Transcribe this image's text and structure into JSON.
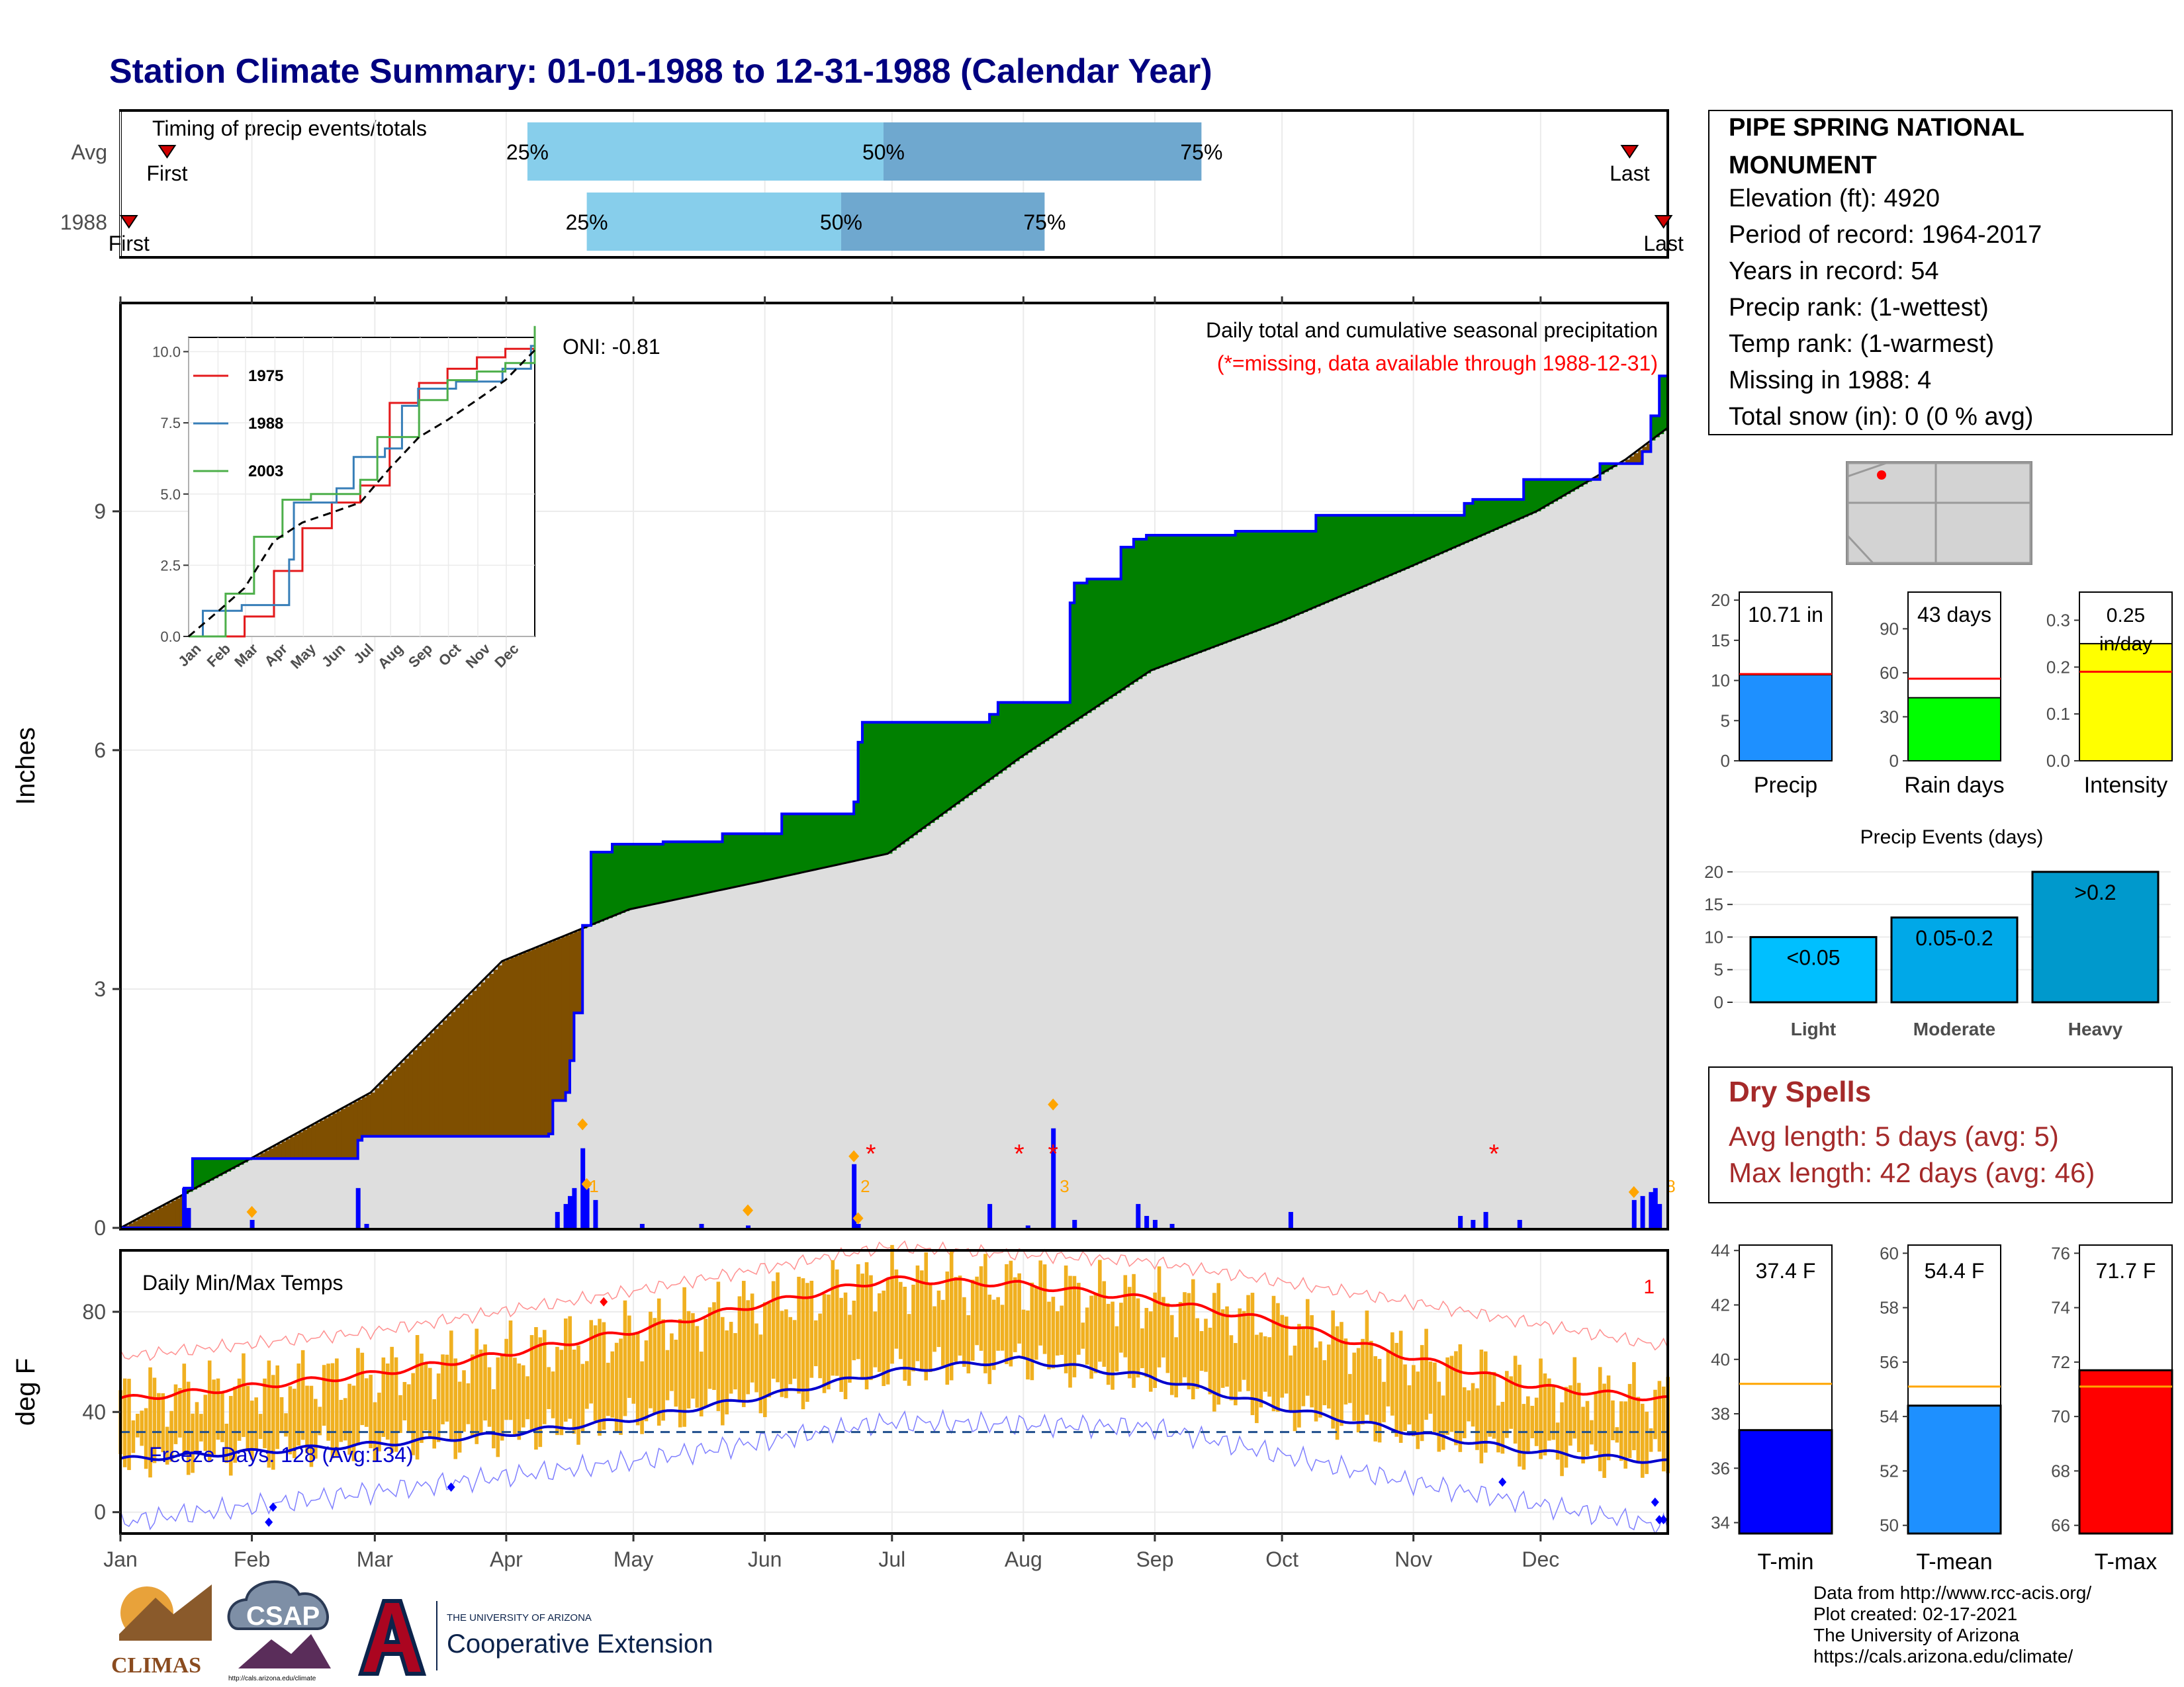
{
  "title": "Station Climate Summary: 01-01-1988 to 12-31-1988 (Calendar Year)",
  "colors": {
    "title": "#000080",
    "precip_bar": "#0000ff",
    "above_avg_fill": "#008000",
    "below_avg_fill": "#7f4f00",
    "clim_fill": "#dedede",
    "tmax_line": "#ff0000",
    "tmin_line": "#0000cd",
    "temp_bars": "#f0b020",
    "q_light": "#87ceeb",
    "q_dark": "#6fa8cf"
  },
  "timing": {
    "title": "Timing of precip events/totals",
    "rows": [
      {
        "label": "Avg",
        "first_label": "First",
        "last_label": "Last",
        "first_day": 12,
        "last_day": 357,
        "q25_day": 97,
        "q50_day": 181,
        "q75_day": 256
      },
      {
        "label": "1988",
        "first_label": "First",
        "last_label": "Last",
        "first_day": 3,
        "last_day": 365,
        "q25_day": 111,
        "q50_day": 171,
        "q75_day": 219
      }
    ],
    "pct_labels": [
      "25%",
      "50%",
      "75%"
    ]
  },
  "precip_panel": {
    "ylabel": "Inches",
    "yticks": [
      "0",
      "3",
      "6",
      "9"
    ],
    "ymax": 11.6,
    "annotation_line1": "Daily total and cumulative seasonal precipitation",
    "annotation_line2": "(*=missing, data available through 1988-12-31)",
    "oni": "ONI: -0.81",
    "missing_markers": [
      {
        "day": 178,
        "y": 1.0
      },
      {
        "day": 213,
        "y": 1.0
      },
      {
        "day": 221,
        "y": 1.0
      },
      {
        "day": 325,
        "y": 1.0
      }
    ]
  },
  "chart_data": [
    {
      "type": "area",
      "title": "Daily total and cumulative seasonal precipitation",
      "ylabel": "Inches",
      "x_unit": "day of year (1988)",
      "ylim": [
        0,
        11.6
      ],
      "cumulative_1988": [
        [
          1,
          0
        ],
        [
          16,
          0.5
        ],
        [
          18,
          0.87
        ],
        [
          57,
          1.1
        ],
        [
          58,
          1.15
        ],
        [
          102,
          1.18
        ],
        [
          103,
          1.6
        ],
        [
          106,
          1.7
        ],
        [
          107,
          2.1
        ],
        [
          108,
          2.7
        ],
        [
          110,
          3.8
        ],
        [
          112,
          4.72
        ],
        [
          117,
          4.82
        ],
        [
          129,
          4.85
        ],
        [
          143,
          4.95
        ],
        [
          157,
          5.2
        ],
        [
          174,
          5.35
        ],
        [
          175,
          6.1
        ],
        [
          176,
          6.35
        ],
        [
          206,
          6.45
        ],
        [
          208,
          6.6
        ],
        [
          225,
          7.85
        ],
        [
          226,
          8.1
        ],
        [
          229,
          8.15
        ],
        [
          237,
          8.55
        ],
        [
          240,
          8.65
        ],
        [
          243,
          8.7
        ],
        [
          264,
          8.75
        ],
        [
          283,
          8.95
        ],
        [
          318,
          9.1
        ],
        [
          320,
          9.15
        ],
        [
          332,
          9.4
        ],
        [
          350,
          9.6
        ],
        [
          360,
          9.75
        ],
        [
          362,
          10.2
        ],
        [
          364,
          10.7
        ],
        [
          366,
          10.71
        ]
      ],
      "climatology_avg": [
        [
          1,
          0
        ],
        [
          31,
          0.85
        ],
        [
          60,
          1.7
        ],
        [
          91,
          3.35
        ],
        [
          121,
          4.0
        ],
        [
          152,
          4.35
        ],
        [
          182,
          4.7
        ],
        [
          213,
          5.9
        ],
        [
          244,
          7.0
        ],
        [
          274,
          7.6
        ],
        [
          305,
          8.3
        ],
        [
          335,
          9.0
        ],
        [
          356,
          9.65
        ],
        [
          366,
          10.05
        ]
      ],
      "daily_precip": [
        [
          16,
          0.5
        ],
        [
          17,
          0.25
        ],
        [
          32,
          0.1
        ],
        [
          57,
          0.5
        ],
        [
          59,
          0.05
        ],
        [
          104,
          0.2
        ],
        [
          106,
          0.3
        ],
        [
          107,
          0.4
        ],
        [
          108,
          0.5
        ],
        [
          110,
          1.0
        ],
        [
          111,
          0.5
        ],
        [
          113,
          0.35
        ],
        [
          124,
          0.05
        ],
        [
          138,
          0.05
        ],
        [
          149,
          0.03
        ],
        [
          174,
          0.8
        ],
        [
          175,
          0.05
        ],
        [
          206,
          0.3
        ],
        [
          215,
          0.03
        ],
        [
          221,
          1.25
        ],
        [
          226,
          0.1
        ],
        [
          241,
          0.3
        ],
        [
          243,
          0.15
        ],
        [
          245,
          0.1
        ],
        [
          249,
          0.05
        ],
        [
          277,
          0.2
        ],
        [
          317,
          0.15
        ],
        [
          320,
          0.1
        ],
        [
          323,
          0.2
        ],
        [
          331,
          0.1
        ],
        [
          358,
          0.35
        ],
        [
          360,
          0.4
        ],
        [
          362,
          0.45
        ],
        [
          363,
          0.5
        ],
        [
          364,
          0.3
        ]
      ],
      "top_event_labels": [
        [
          110,
          "1"
        ],
        [
          174,
          "2"
        ],
        [
          221,
          "3"
        ],
        [
          364,
          "8"
        ]
      ]
    },
    {
      "type": "line",
      "title": "",
      "inset_series": [
        {
          "name": "1975",
          "color": "#e41a1c",
          "cumulative": [
            [
              1,
              0
            ],
            [
              60,
              0.7
            ],
            [
              91,
              2.3
            ],
            [
              121,
              3.8
            ],
            [
              152,
              4.7
            ],
            [
              182,
              5.3
            ],
            [
              213,
              8.2
            ],
            [
              244,
              8.9
            ],
            [
              274,
              9.4
            ],
            [
              305,
              9.8
            ],
            [
              335,
              10.1
            ],
            [
              366,
              10.4
            ]
          ]
        },
        {
          "name": "1988",
          "color": "#377eb8",
          "cumulative": [
            [
              1,
              0
            ],
            [
              16,
              0.9
            ],
            [
              57,
              1.1
            ],
            [
              107,
              2.7
            ],
            [
              112,
              4.7
            ],
            [
              157,
              5.2
            ],
            [
              175,
              6.3
            ],
            [
              208,
              6.6
            ],
            [
              226,
              8.1
            ],
            [
              243,
              8.7
            ],
            [
              283,
              8.95
            ],
            [
              332,
              9.4
            ],
            [
              362,
              10.2
            ],
            [
              366,
              10.71
            ]
          ]
        },
        {
          "name": "2003",
          "color": "#4daf4a",
          "cumulative": [
            [
              1,
              0
            ],
            [
              40,
              1.5
            ],
            [
              70,
              3.5
            ],
            [
              100,
              4.8
            ],
            [
              130,
              5.0
            ],
            [
              182,
              5.5
            ],
            [
              200,
              7.0
            ],
            [
              244,
              8.3
            ],
            [
              274,
              9.0
            ],
            [
              305,
              9.3
            ],
            [
              335,
              9.6
            ],
            [
              366,
              10.9
            ]
          ]
        },
        {
          "name": "",
          "color": "#000000",
          "cumulative": [
            [
              1,
              0
            ],
            [
              31,
              0.85
            ],
            [
              60,
              1.7
            ],
            [
              91,
              3.35
            ],
            [
              121,
              4.0
            ],
            [
              152,
              4.35
            ],
            [
              182,
              4.7
            ],
            [
              213,
              5.9
            ],
            [
              244,
              7.0
            ],
            [
              274,
              7.6
            ],
            [
              305,
              8.3
            ],
            [
              335,
              9.0
            ],
            [
              366,
              10.05
            ]
          ]
        }
      ],
      "yticks": [
        "0.0",
        "2.5",
        "5.0",
        "7.5",
        "10.0"
      ],
      "xticks": [
        "Jan",
        "Feb",
        "Mar",
        "Apr",
        "May",
        "Jun",
        "Jul",
        "Aug",
        "Sep",
        "Oct",
        "Nov",
        "Dec"
      ],
      "ylim": [
        0,
        10.5
      ]
    },
    {
      "type": "line",
      "title": "Daily Min/Max Temps",
      "ylabel": "deg F",
      "ylim": [
        -8,
        104
      ],
      "yticks": [
        "0",
        "40",
        "80"
      ],
      "xticks": [
        "Jan",
        "Feb",
        "Mar",
        "Apr",
        "May",
        "Jun",
        "Jul",
        "Aug",
        "Sep",
        "Oct",
        "Nov",
        "Dec"
      ],
      "freeze_label": "Freeze Days: 128 (Avg:134)",
      "freeze_line": 32,
      "corner_label": "1",
      "avg_tmax": [
        [
          1,
          45
        ],
        [
          31,
          50
        ],
        [
          60,
          55
        ],
        [
          91,
          63
        ],
        [
          121,
          72
        ],
        [
          152,
          83
        ],
        [
          182,
          93
        ],
        [
          213,
          91
        ],
        [
          244,
          85
        ],
        [
          274,
          76
        ],
        [
          305,
          62
        ],
        [
          335,
          50
        ],
        [
          366,
          45
        ]
      ],
      "avg_tmin": [
        [
          1,
          21
        ],
        [
          31,
          24
        ],
        [
          60,
          27
        ],
        [
          91,
          31
        ],
        [
          121,
          37
        ],
        [
          152,
          46
        ],
        [
          182,
          56
        ],
        [
          213,
          61
        ],
        [
          244,
          54
        ],
        [
          274,
          42
        ],
        [
          305,
          32
        ],
        [
          335,
          24
        ],
        [
          366,
          20
        ]
      ],
      "record_high": [
        [
          1,
          62
        ],
        [
          60,
          72
        ],
        [
          121,
          88
        ],
        [
          182,
          106
        ],
        [
          244,
          100
        ],
        [
          305,
          84
        ],
        [
          366,
          66
        ]
      ],
      "record_low": [
        [
          1,
          -4
        ],
        [
          60,
          8
        ],
        [
          121,
          20
        ],
        [
          182,
          36
        ],
        [
          244,
          34
        ],
        [
          305,
          12
        ],
        [
          366,
          -6
        ]
      ]
    }
  ],
  "station": {
    "name_line1": "PIPE SPRING NATIONAL",
    "name_line2": "MONUMENT",
    "elevation": "Elevation (ft): 4920",
    "period": "Period of record: 1964-2017",
    "years": "Years in record: 54",
    "precip_rank": "Precip rank:  (1-wettest)",
    "temp_rank": "Temp rank:  (1-warmest)",
    "missing": "Missing in 1988: 4",
    "snow": "Total snow (in): 0 (0 % avg)"
  },
  "mini_bars": [
    {
      "label": "Precip",
      "value_text": "10.71 in",
      "value": 10.71,
      "avg": 10.8,
      "ymax": 21,
      "yticks": [
        "0",
        "5",
        "10",
        "15",
        "20"
      ],
      "tick_vals": [
        0,
        5,
        10,
        15,
        20
      ],
      "color": "#1e90ff"
    },
    {
      "label": "Rain days",
      "value_text": "43 days",
      "value": 43,
      "avg": 56,
      "ymax": 115,
      "yticks": [
        "0",
        "30",
        "60",
        "90"
      ],
      "tick_vals": [
        0,
        30,
        60,
        90
      ],
      "color": "#00ff00"
    },
    {
      "label": "Intensity",
      "value_text": "0.25 in/day",
      "value": 0.25,
      "avg": 0.19,
      "ymax": 0.36,
      "yticks": [
        "0.0",
        "0.1",
        "0.2",
        "0.3"
      ],
      "tick_vals": [
        0,
        0.1,
        0.2,
        0.3
      ],
      "color": "#ffff00"
    }
  ],
  "precip_events": {
    "title": "Precip Events (days)",
    "categories": [
      "Light",
      "Moderate",
      "Heavy"
    ],
    "bar_labels": [
      "<0.05",
      "0.05-0.2",
      ">0.2"
    ],
    "values": [
      10,
      13,
      20
    ],
    "ymax": 21,
    "yticks": [
      "0",
      "5",
      "10",
      "15",
      "20"
    ],
    "colors": [
      "#00bfff",
      "#00a8e8",
      "#0099cc"
    ]
  },
  "dry_spells": {
    "title": "Dry Spells",
    "avg_length": "Avg length: 5 days (avg: 5)",
    "max_length": "Max length: 42 days (avg: 46)"
  },
  "temp_bars": [
    {
      "label": "T-min",
      "value_text": "37.4 F",
      "value": 37.4,
      "avg": 39.1,
      "ymin": 33.6,
      "ymax": 44.2,
      "yticks": [
        "34",
        "36",
        "38",
        "40",
        "42",
        "44"
      ],
      "tick_vals": [
        34,
        36,
        38,
        40,
        42,
        44
      ],
      "color": "#0000ff"
    },
    {
      "label": "T-mean",
      "value_text": "54.4 F",
      "value": 54.4,
      "avg": 55.1,
      "ymin": 49.7,
      "ymax": 60.3,
      "yticks": [
        "50",
        "52",
        "54",
        "56",
        "58",
        "60"
      ],
      "tick_vals": [
        50,
        52,
        54,
        56,
        58,
        60
      ],
      "color": "#1e90ff"
    },
    {
      "label": "T-max",
      "value_text": "71.7 F",
      "value": 71.7,
      "avg": 71.1,
      "ymin": 65.7,
      "ymax": 76.3,
      "yticks": [
        "66",
        "68",
        "70",
        "72",
        "74",
        "76"
      ],
      "tick_vals": [
        66,
        68,
        70,
        72,
        74,
        76
      ],
      "color": "#ff0000"
    }
  ],
  "months": [
    "Jan",
    "Feb",
    "Mar",
    "Apr",
    "May",
    "Jun",
    "Jul",
    "Aug",
    "Sep",
    "Oct",
    "Nov",
    "Dec"
  ],
  "logos": {
    "climas": "CLIMAS",
    "csap": "CSAP",
    "csap_url": "http://cals.arizona.edu/climate",
    "ua_small": "THE UNIVERSITY OF ARIZONA",
    "ua_big": "Cooperative Extension"
  },
  "credits": {
    "line1": "Data from http://www.rcc-acis.org/",
    "line2": "Plot created: 02-17-2021",
    "line3": "The University of Arizona",
    "line4": "https://cals.arizona.edu/climate/"
  }
}
